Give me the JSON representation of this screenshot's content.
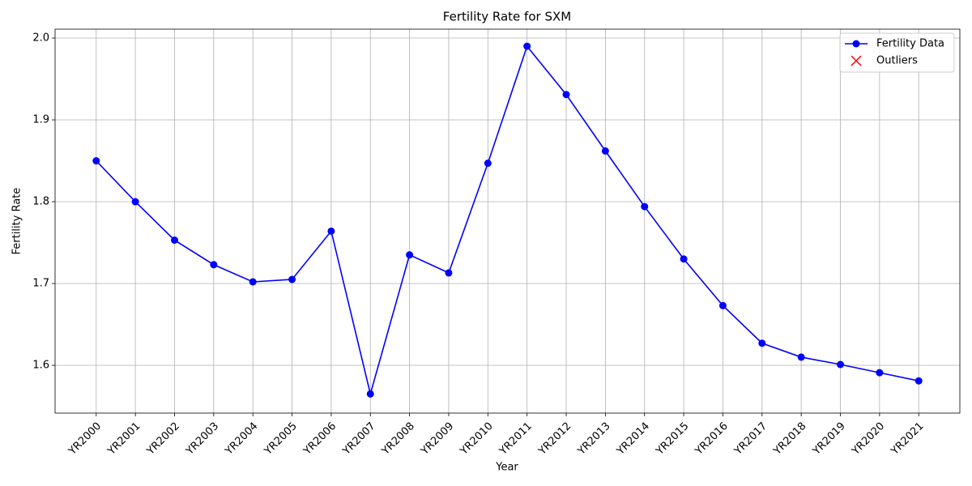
{
  "chart_data": {
    "type": "line",
    "title": "Fertility Rate for SXM",
    "x_label": "Year",
    "y_label": "Fertility Rate",
    "categories": [
      "YR2000",
      "YR2001",
      "YR2002",
      "YR2003",
      "YR2004",
      "YR2005",
      "YR2006",
      "YR2007",
      "YR2008",
      "YR2009",
      "YR2010",
      "YR2011",
      "YR2012",
      "YR2013",
      "YR2014",
      "YR2015",
      "YR2016",
      "YR2017",
      "YR2018",
      "YR2019",
      "YR2020",
      "YR2021"
    ],
    "series": [
      {
        "name": "Fertility Data",
        "color": "#0000ff",
        "marker": "o",
        "values": [
          1.85,
          1.8,
          1.753,
          1.723,
          1.702,
          1.705,
          1.764,
          1.565,
          1.735,
          1.713,
          1.847,
          1.99,
          1.931,
          1.862,
          1.794,
          1.73,
          1.673,
          1.627,
          1.61,
          1.601,
          1.591,
          1.581
        ]
      },
      {
        "name": "Outliers",
        "color": "#ff0000",
        "marker": "x",
        "values": [
          null,
          null,
          null,
          null,
          null,
          null,
          null,
          null,
          null,
          null,
          null,
          null,
          null,
          null,
          null,
          null,
          null,
          null,
          null,
          null,
          null,
          null
        ]
      }
    ],
    "ylim": [
      1.5416,
      2.0109
    ],
    "yticks": [
      1.6,
      1.7,
      1.8,
      1.9,
      {
        "value": 2,
        "label": "2.0"
      }
    ],
    "grid": true,
    "legend": "upper right"
  }
}
